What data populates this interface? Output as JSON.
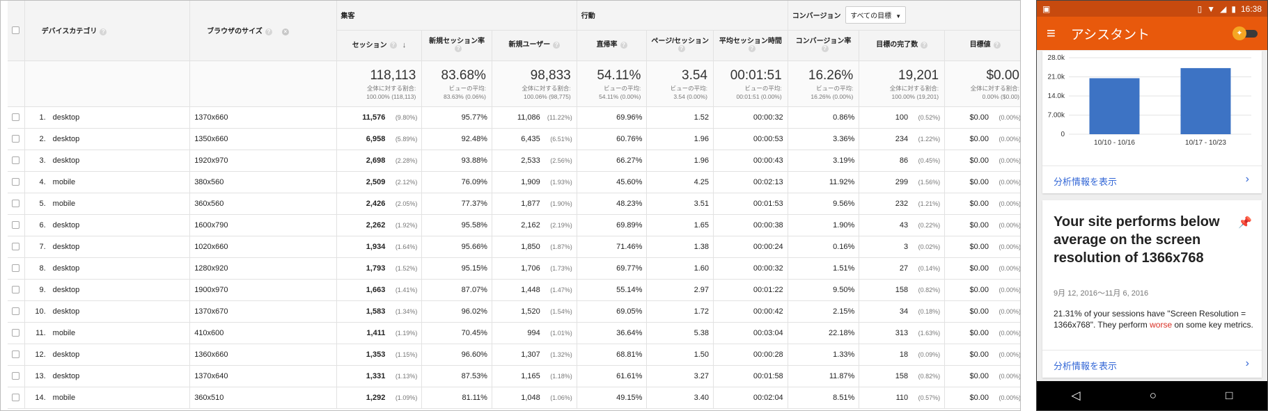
{
  "analytics": {
    "dims": {
      "device_category": "デバイスカテゴリ",
      "browser_size": "ブラウザのサイズ"
    },
    "groups": {
      "acquisition": "集客",
      "behavior": "行動",
      "conversions": "コンバージョン"
    },
    "goal_selector": "すべての目標",
    "metrics": [
      "セッション",
      "新規セッション率",
      "新規ユーザー",
      "直帰率",
      "ページ/セッション",
      "平均セッション時間",
      "コンバージョン率",
      "目標の完了数",
      "目標値"
    ],
    "totals": [
      {
        "value": "118,113",
        "sub1": "全体に対する割合:",
        "sub2": "100.00% (118,113)"
      },
      {
        "value": "83.68%",
        "sub1": "ビューの平均:",
        "sub2": "83.63% (0.06%)"
      },
      {
        "value": "98,833",
        "sub1": "全体に対する割合:",
        "sub2": "100.06% (98,775)"
      },
      {
        "value": "54.11%",
        "sub1": "ビューの平均:",
        "sub2": "54.11% (0.00%)"
      },
      {
        "value": "3.54",
        "sub1": "ビューの平均:",
        "sub2": "3.54 (0.00%)"
      },
      {
        "value": "00:01:51",
        "sub1": "ビューの平均:",
        "sub2": "00:01:51 (0.00%)"
      },
      {
        "value": "16.26%",
        "sub1": "ビューの平均:",
        "sub2": "16.26% (0.00%)"
      },
      {
        "value": "19,201",
        "sub1": "全体に対する割合:",
        "sub2": "100.00% (19,201)"
      },
      {
        "value": "$0.00",
        "sub1": "全体に対する割合:",
        "sub2": "0.00% ($0.00)"
      }
    ],
    "rows": [
      [
        "1.",
        "desktop",
        "1370x660",
        "11,576",
        "(9.80%)",
        "95.77%",
        "11,086",
        "(11.22%)",
        "69.96%",
        "1.52",
        "00:00:32",
        "0.86%",
        "100",
        "(0.52%)",
        "$0.00",
        "(0.00%)"
      ],
      [
        "2.",
        "desktop",
        "1350x660",
        "6,958",
        "(5.89%)",
        "92.48%",
        "6,435",
        "(6.51%)",
        "60.76%",
        "1.96",
        "00:00:53",
        "3.36%",
        "234",
        "(1.22%)",
        "$0.00",
        "(0.00%)"
      ],
      [
        "3.",
        "desktop",
        "1920x970",
        "2,698",
        "(2.28%)",
        "93.88%",
        "2,533",
        "(2.56%)",
        "66.27%",
        "1.96",
        "00:00:43",
        "3.19%",
        "86",
        "(0.45%)",
        "$0.00",
        "(0.00%)"
      ],
      [
        "4.",
        "mobile",
        "380x560",
        "2,509",
        "(2.12%)",
        "76.09%",
        "1,909",
        "(1.93%)",
        "45.60%",
        "4.25",
        "00:02:13",
        "11.92%",
        "299",
        "(1.56%)",
        "$0.00",
        "(0.00%)"
      ],
      [
        "5.",
        "mobile",
        "360x560",
        "2,426",
        "(2.05%)",
        "77.37%",
        "1,877",
        "(1.90%)",
        "48.23%",
        "3.51",
        "00:01:53",
        "9.56%",
        "232",
        "(1.21%)",
        "$0.00",
        "(0.00%)"
      ],
      [
        "6.",
        "desktop",
        "1600x790",
        "2,262",
        "(1.92%)",
        "95.58%",
        "2,162",
        "(2.19%)",
        "69.89%",
        "1.65",
        "00:00:38",
        "1.90%",
        "43",
        "(0.22%)",
        "$0.00",
        "(0.00%)"
      ],
      [
        "7.",
        "desktop",
        "1020x660",
        "1,934",
        "(1.64%)",
        "95.66%",
        "1,850",
        "(1.87%)",
        "71.46%",
        "1.38",
        "00:00:24",
        "0.16%",
        "3",
        "(0.02%)",
        "$0.00",
        "(0.00%)"
      ],
      [
        "8.",
        "desktop",
        "1280x920",
        "1,793",
        "(1.52%)",
        "95.15%",
        "1,706",
        "(1.73%)",
        "69.77%",
        "1.60",
        "00:00:32",
        "1.51%",
        "27",
        "(0.14%)",
        "$0.00",
        "(0.00%)"
      ],
      [
        "9.",
        "desktop",
        "1900x970",
        "1,663",
        "(1.41%)",
        "87.07%",
        "1,448",
        "(1.47%)",
        "55.14%",
        "2.97",
        "00:01:22",
        "9.50%",
        "158",
        "(0.82%)",
        "$0.00",
        "(0.00%)"
      ],
      [
        "10.",
        "desktop",
        "1370x670",
        "1,583",
        "(1.34%)",
        "96.02%",
        "1,520",
        "(1.54%)",
        "69.05%",
        "1.72",
        "00:00:42",
        "2.15%",
        "34",
        "(0.18%)",
        "$0.00",
        "(0.00%)"
      ],
      [
        "11.",
        "mobile",
        "410x600",
        "1,411",
        "(1.19%)",
        "70.45%",
        "994",
        "(1.01%)",
        "36.64%",
        "5.38",
        "00:03:04",
        "22.18%",
        "313",
        "(1.63%)",
        "$0.00",
        "(0.00%)"
      ],
      [
        "12.",
        "desktop",
        "1360x660",
        "1,353",
        "(1.15%)",
        "96.60%",
        "1,307",
        "(1.32%)",
        "68.81%",
        "1.50",
        "00:00:28",
        "1.33%",
        "18",
        "(0.09%)",
        "$0.00",
        "(0.00%)"
      ],
      [
        "13.",
        "desktop",
        "1370x640",
        "1,331",
        "(1.13%)",
        "87.53%",
        "1,165",
        "(1.18%)",
        "61.61%",
        "3.27",
        "00:01:58",
        "11.87%",
        "158",
        "(0.82%)",
        "$0.00",
        "(0.00%)"
      ],
      [
        "14.",
        "mobile",
        "360x510",
        "1,292",
        "(1.09%)",
        "81.11%",
        "1,048",
        "(1.06%)",
        "49.15%",
        "3.40",
        "00:02:04",
        "8.51%",
        "110",
        "(0.57%)",
        "$0.00",
        "(0.00%)"
      ]
    ]
  },
  "phone": {
    "status": {
      "time": "16:38"
    },
    "app_title": "アシスタント",
    "card1": {
      "link": "分析情報を表示"
    },
    "card2": {
      "title": "Your site performs below average on the screen resolution of 1366x768",
      "date": "9月 12, 2016〜11月 6, 2016",
      "body_pre": "21.31% of your sessions have \"Screen Resolution = 1366x768\". They perform ",
      "body_emph": "worse",
      "body_post": " on some key metrics.",
      "link": "分析情報を表示"
    }
  },
  "chart_data": {
    "type": "bar",
    "categories": [
      "10/10 - 10/16",
      "10/17 - 10/23"
    ],
    "values": [
      20500,
      24200
    ],
    "yticks": [
      "0",
      "7.00k",
      "14.0k",
      "21.0k",
      "28.0k"
    ],
    "ylim": [
      0,
      28000
    ],
    "bar_color": "#3d73c4",
    "grid": true
  }
}
